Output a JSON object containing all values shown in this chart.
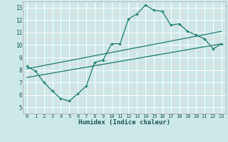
{
  "xlabel": "Humidex (Indice chaleur)",
  "bg_color": "#cce8e8",
  "grid_color": "#ffffff",
  "grid_minor_color": "#e8d8d8",
  "line_color": "#1a7a6e",
  "xlim": [
    -0.5,
    23.5
  ],
  "ylim": [
    5,
    13.4
  ],
  "xticks": [
    0,
    1,
    2,
    3,
    4,
    5,
    6,
    7,
    8,
    9,
    10,
    11,
    12,
    13,
    14,
    15,
    16,
    17,
    18,
    19,
    20,
    21,
    22,
    23
  ],
  "yticks": [
    5,
    6,
    7,
    8,
    9,
    10,
    11,
    12,
    13
  ],
  "line1_x": [
    0,
    1,
    2,
    3,
    4,
    5,
    6,
    7,
    8,
    9,
    10,
    11,
    12,
    13,
    14,
    15,
    16,
    17,
    18,
    19,
    20,
    21,
    22,
    23
  ],
  "line1_y": [
    8.3,
    7.9,
    7.0,
    6.3,
    5.7,
    5.5,
    6.1,
    6.7,
    8.6,
    8.8,
    10.1,
    10.1,
    12.1,
    12.5,
    13.2,
    12.8,
    12.7,
    11.6,
    11.7,
    11.1,
    10.8,
    10.5,
    9.7,
    10.1
  ],
  "line2_x": [
    0,
    23
  ],
  "line2_y": [
    8.1,
    11.1
  ],
  "line3_x": [
    0,
    23
  ],
  "line3_y": [
    7.4,
    10.1
  ]
}
